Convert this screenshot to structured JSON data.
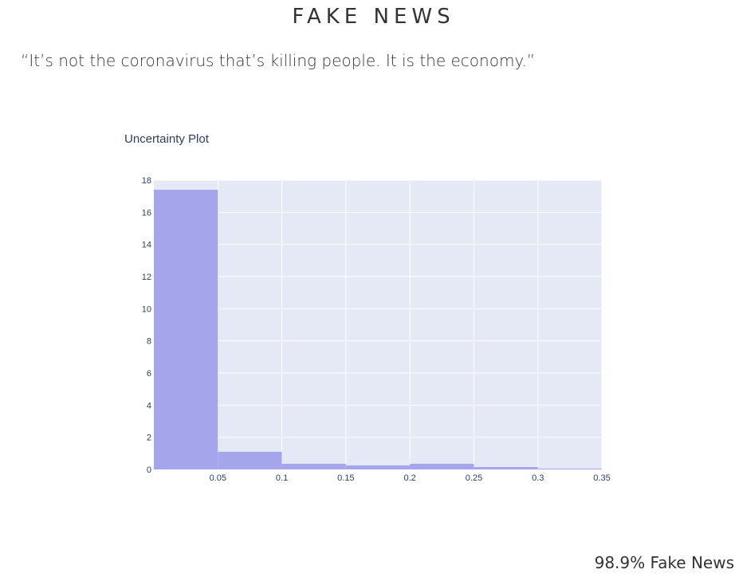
{
  "header": {
    "title": "FAKE NEWS"
  },
  "quote": "“It’s not the coronavirus that’s killing people. It is the economy.”",
  "result": "98.9% Fake News",
  "chart_data": {
    "type": "bar",
    "title": "Uncertainty Plot",
    "xlabel": "",
    "ylabel": "",
    "xlim": [
      0,
      0.35
    ],
    "ylim": [
      0,
      18
    ],
    "bins": [
      {
        "x0": 0.0,
        "x1": 0.05,
        "value": 17.4
      },
      {
        "x0": 0.05,
        "x1": 0.1,
        "value": 1.1
      },
      {
        "x0": 0.1,
        "x1": 0.15,
        "value": 0.35
      },
      {
        "x0": 0.15,
        "x1": 0.2,
        "value": 0.25
      },
      {
        "x0": 0.2,
        "x1": 0.25,
        "value": 0.35
      },
      {
        "x0": 0.25,
        "x1": 0.3,
        "value": 0.15
      },
      {
        "x0": 0.3,
        "x1": 0.35,
        "value": 0.05
      }
    ],
    "x_ticks": [
      {
        "value": 0.05,
        "label": "0.05"
      },
      {
        "value": 0.1,
        "label": "0.1"
      },
      {
        "value": 0.15,
        "label": "0.15"
      },
      {
        "value": 0.2,
        "label": "0.2"
      },
      {
        "value": 0.25,
        "label": "0.25"
      },
      {
        "value": 0.3,
        "label": "0.3"
      },
      {
        "value": 0.35,
        "label": "0.35"
      }
    ],
    "y_ticks": [
      {
        "value": 0,
        "label": "0"
      },
      {
        "value": 2,
        "label": "2"
      },
      {
        "value": 4,
        "label": "4"
      },
      {
        "value": 6,
        "label": "6"
      },
      {
        "value": 8,
        "label": "8"
      },
      {
        "value": 10,
        "label": "10"
      },
      {
        "value": 12,
        "label": "12"
      },
      {
        "value": 14,
        "label": "14"
      },
      {
        "value": 16,
        "label": "16"
      },
      {
        "value": 18,
        "label": "18"
      }
    ],
    "grid": true,
    "colors": {
      "bar": "#a5a5ec",
      "plot_bg": "#e5e8f5",
      "grid": "#ffffff"
    }
  }
}
